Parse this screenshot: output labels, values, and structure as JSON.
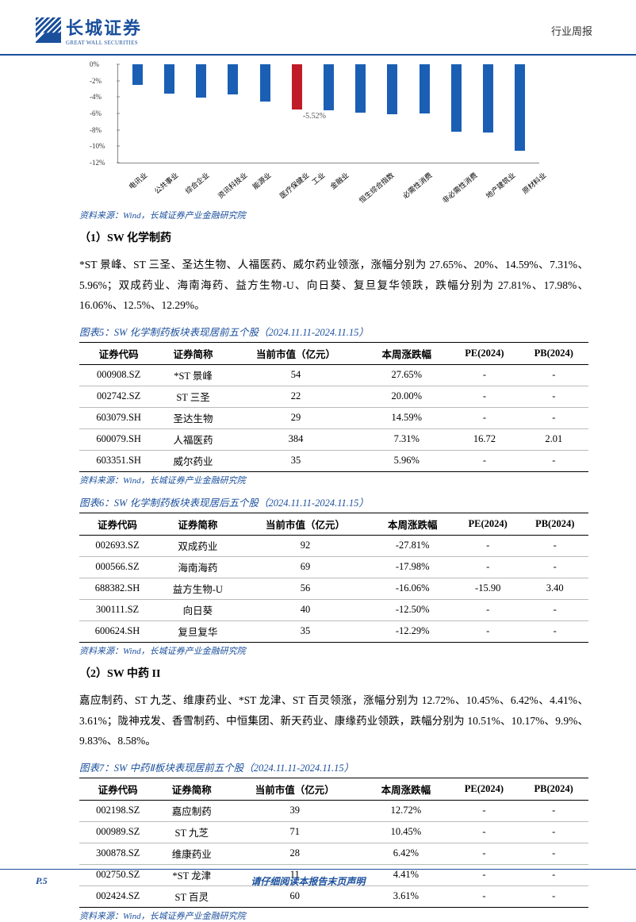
{
  "header": {
    "logo_cn": "长城证券",
    "logo_en": "GREAT WALL SECURITIES",
    "right": "行业周报"
  },
  "chart": {
    "type": "bar",
    "ylim": [
      -12,
      0
    ],
    "ytick_step": 2,
    "yticks": [
      0,
      -2,
      -4,
      -6,
      -8,
      -10,
      -12
    ],
    "ytick_labels": [
      "0%",
      "-2%",
      "-4%",
      "-6%",
      "-8%",
      "-10%",
      "-12%"
    ],
    "categories": [
      "电讯业",
      "公共事业",
      "综合企业",
      "资讯科技业",
      "能源业",
      "医疗保健业",
      "工业",
      "金融业",
      "恒生综合指数",
      "必需性消费",
      "非必需性消费",
      "地产建筑业",
      "原材料业"
    ],
    "values": [
      -2.5,
      -3.6,
      -4.1,
      -3.7,
      -4.5,
      -5.52,
      -5.6,
      -5.9,
      -6.1,
      -6.0,
      -8.2,
      -8.3,
      -10.5
    ],
    "highlight_index": 5,
    "bar_color": "#1a5fb4",
    "highlight_color": "#c01c28",
    "callout_text": "-5.52%",
    "background_color": "#ffffff",
    "axis_color": "#888888",
    "label_fontsize": 9
  },
  "source": "资料来源：Wind，长城证券产业金融研究院",
  "sec1": {
    "title": "（1）SW 化学制药",
    "para": "*ST 景峰、ST 三圣、圣达生物、人福医药、威尔药业领涨，涨幅分别为 27.65%、20%、14.59%、7.31%、5.96%；双成药业、海南海药、益方生物-U、向日葵、复旦复华领跌，跌幅分别为 27.81%、17.98%、16.06%、12.5%、12.29%。"
  },
  "columns": [
    "证券代码",
    "证券简称",
    "当前市值（亿元）",
    "本周涨跌幅",
    "PE(2024)",
    "PB(2024)"
  ],
  "table5": {
    "title": "图表5：SW 化学制药板块表现居前五个股（2024.11.11-2024.11.15）",
    "rows": [
      [
        "000908.SZ",
        "*ST 景峰",
        "54",
        "27.65%",
        "-",
        "-"
      ],
      [
        "002742.SZ",
        "ST 三圣",
        "22",
        "20.00%",
        "-",
        "-"
      ],
      [
        "603079.SH",
        "圣达生物",
        "29",
        "14.59%",
        "-",
        "-"
      ],
      [
        "600079.SH",
        "人福医药",
        "384",
        "7.31%",
        "16.72",
        "2.01"
      ],
      [
        "603351.SH",
        "威尔药业",
        "35",
        "5.96%",
        "-",
        "-"
      ]
    ]
  },
  "table6": {
    "title": "图表6：SW 化学制药板块表现居后五个股（2024.11.11-2024.11.15）",
    "rows": [
      [
        "002693.SZ",
        "双成药业",
        "92",
        "-27.81%",
        "-",
        "-"
      ],
      [
        "000566.SZ",
        "海南海药",
        "69",
        "-17.98%",
        "-",
        "-"
      ],
      [
        "688382.SH",
        "益方生物-U",
        "56",
        "-16.06%",
        "-15.90",
        "3.40"
      ],
      [
        "300111.SZ",
        "向日葵",
        "40",
        "-12.50%",
        "-",
        "-"
      ],
      [
        "600624.SH",
        "复旦复华",
        "35",
        "-12.29%",
        "-",
        "-"
      ]
    ]
  },
  "sec2": {
    "title": "（2）SW 中药 II",
    "para": "嘉应制药、ST 九芝、维康药业、*ST 龙津、ST 百灵领涨，涨幅分别为 12.72%、10.45%、6.42%、4.41%、3.61%；陇神戎发、香雪制药、中恒集团、新天药业、康缘药业领跌，跌幅分别为 10.51%、10.17%、9.9%、9.83%、8.58%。"
  },
  "table7": {
    "title": "图表7：SW 中药Ⅱ板块表现居前五个股（2024.11.11-2024.11.15）",
    "rows": [
      [
        "002198.SZ",
        "嘉应制药",
        "39",
        "12.72%",
        "-",
        "-"
      ],
      [
        "000989.SZ",
        "ST 九芝",
        "71",
        "10.45%",
        "-",
        "-"
      ],
      [
        "300878.SZ",
        "维康药业",
        "28",
        "6.42%",
        "-",
        "-"
      ],
      [
        "002750.SZ",
        "*ST 龙津",
        "11",
        "4.41%",
        "-",
        "-"
      ],
      [
        "002424.SZ",
        "ST 百灵",
        "60",
        "3.61%",
        "-",
        "-"
      ]
    ]
  },
  "footer": {
    "page": "P.5",
    "text": "请仔细阅读本报告末页声明"
  }
}
